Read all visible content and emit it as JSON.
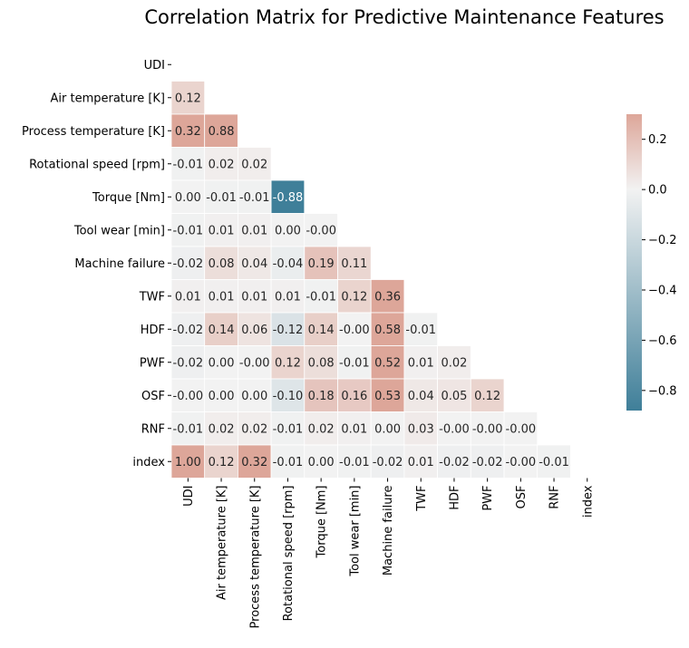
{
  "chart_data": {
    "type": "heatmap",
    "title": "Correlation Matrix for Predictive Maintenance Features",
    "xlabel": "",
    "ylabel": "",
    "labels": [
      "UDI",
      "Air temperature [K]",
      "Process temperature [K]",
      "Rotational speed [rpm]",
      "Torque [Nm]",
      "Tool wear [min]",
      "Machine failure",
      "TWF",
      "HDF",
      "PWF",
      "OSF",
      "RNF",
      "index"
    ],
    "mask": "upper-triangle-including-diagonal",
    "annotation_format": "0.00",
    "rows": [
      [],
      [
        "0.12"
      ],
      [
        "0.32",
        "0.88"
      ],
      [
        "-0.01",
        "0.02",
        "0.02"
      ],
      [
        "0.00",
        "-0.01",
        "-0.01",
        "-0.88"
      ],
      [
        "-0.01",
        "0.01",
        "0.01",
        "0.00",
        "-0.00"
      ],
      [
        "-0.02",
        "0.08",
        "0.04",
        "-0.04",
        "0.19",
        "0.11"
      ],
      [
        "0.01",
        "0.01",
        "0.01",
        "0.01",
        "-0.01",
        "0.12",
        "0.36"
      ],
      [
        "-0.02",
        "0.14",
        "0.06",
        "-0.12",
        "0.14",
        "-0.00",
        "0.58",
        "-0.01"
      ],
      [
        "-0.02",
        "0.00",
        "-0.00",
        "0.12",
        "0.08",
        "-0.01",
        "0.52",
        "0.01",
        "0.02"
      ],
      [
        "-0.00",
        "0.00",
        "0.00",
        "-0.10",
        "0.18",
        "0.16",
        "0.53",
        "0.04",
        "0.05",
        "0.12"
      ],
      [
        "-0.01",
        "0.02",
        "0.02",
        "-0.01",
        "0.02",
        "0.01",
        "0.00",
        "0.03",
        "-0.00",
        "-0.00",
        "-0.00"
      ],
      [
        "1.00",
        "0.12",
        "0.32",
        "-0.01",
        "0.00",
        "-0.01",
        "-0.02",
        "0.01",
        "-0.02",
        "-0.02",
        "-0.00",
        "-0.01"
      ]
    ],
    "color_scale": {
      "vmin": -0.88,
      "vmax": 0.3,
      "center": 0,
      "negative_color": "#3f7f99",
      "center_color": "#f2f2f2",
      "positive_color": "#dda699",
      "ticks": [
        "−0.8",
        "−0.6",
        "−0.4",
        "−0.2",
        "0.0",
        "0.2"
      ]
    }
  }
}
